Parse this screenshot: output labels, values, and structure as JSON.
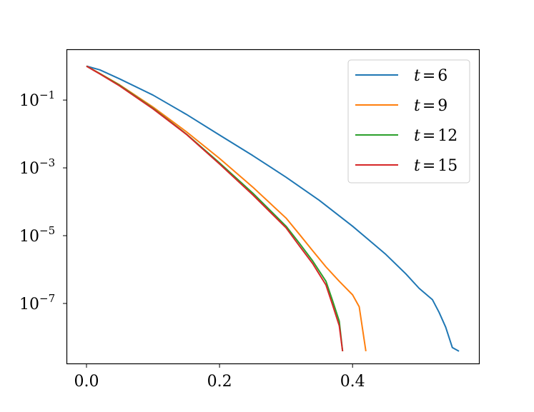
{
  "chart_data": {
    "type": "line",
    "title": "",
    "xlabel": "",
    "ylabel": "",
    "yscale": "log",
    "xlim": [
      -0.029,
      0.59
    ],
    "ylim": [
      1.7e-09,
      3.0
    ],
    "x_ticks": [
      {
        "value": 0.0,
        "label": "0.0"
      },
      {
        "value": 0.2,
        "label": "0.2"
      },
      {
        "value": 0.4,
        "label": "0.4"
      }
    ],
    "y_ticks": [
      {
        "value": 0.1,
        "base": "10",
        "exp": "−1"
      },
      {
        "value": 0.001,
        "base": "10",
        "exp": "−3"
      },
      {
        "value": 1e-05,
        "base": "10",
        "exp": "−5"
      },
      {
        "value": 1e-07,
        "base": "10",
        "exp": "−7"
      }
    ],
    "grid": false,
    "legend_position": "top-right",
    "series": [
      {
        "name": "t=6",
        "name_var": "t",
        "name_val": "6",
        "color": "#1f77b4",
        "x": [
          0.0,
          0.02,
          0.05,
          0.1,
          0.15,
          0.2,
          0.25,
          0.3,
          0.35,
          0.4,
          0.45,
          0.48,
          0.5,
          0.52,
          0.53,
          0.54,
          0.55,
          0.56
        ],
        "y": [
          1.0,
          0.78,
          0.42,
          0.14,
          0.038,
          0.0093,
          0.0023,
          0.00053,
          0.00011,
          1.9e-05,
          2.8e-06,
          7.5e-07,
          2.8e-07,
          1.3e-07,
          5.5e-08,
          2e-08,
          5e-09,
          3.9e-09
        ]
      },
      {
        "name": "t=9",
        "name_var": "t",
        "name_val": "9",
        "color": "#ff7f0e",
        "x": [
          0.0,
          0.02,
          0.05,
          0.1,
          0.15,
          0.2,
          0.25,
          0.3,
          0.32,
          0.34,
          0.36,
          0.38,
          0.4,
          0.41,
          0.42
        ],
        "y": [
          1.0,
          0.61,
          0.28,
          0.062,
          0.0117,
          0.0019,
          0.00027,
          3.3e-05,
          1.1e-05,
          3.6e-06,
          1.2e-06,
          4.5e-07,
          1.8e-07,
          8e-08,
          3.9e-09
        ]
      },
      {
        "name": "t=12",
        "name_var": "t",
        "name_val": "12",
        "color": "#2ca02c",
        "x": [
          0.0,
          0.02,
          0.05,
          0.1,
          0.15,
          0.2,
          0.25,
          0.3,
          0.32,
          0.34,
          0.36,
          0.37,
          0.38,
          0.385
        ],
        "y": [
          1.0,
          0.6,
          0.27,
          0.057,
          0.01,
          0.0014,
          0.00018,
          1.9e-05,
          6e-06,
          1.8e-06,
          4.5e-07,
          1.2e-07,
          3e-08,
          3.9e-09
        ]
      },
      {
        "name": "t=15",
        "name_var": "t",
        "name_val": "15",
        "color": "#d62728",
        "x": [
          0.0,
          0.02,
          0.05,
          0.1,
          0.15,
          0.2,
          0.25,
          0.3,
          0.32,
          0.34,
          0.36,
          0.37,
          0.38,
          0.385
        ],
        "y": [
          1.0,
          0.59,
          0.26,
          0.055,
          0.0098,
          0.0013,
          0.00016,
          1.7e-05,
          5e-06,
          1.5e-06,
          3.5e-07,
          9e-08,
          2.2e-08,
          3.9e-09
        ]
      }
    ]
  }
}
